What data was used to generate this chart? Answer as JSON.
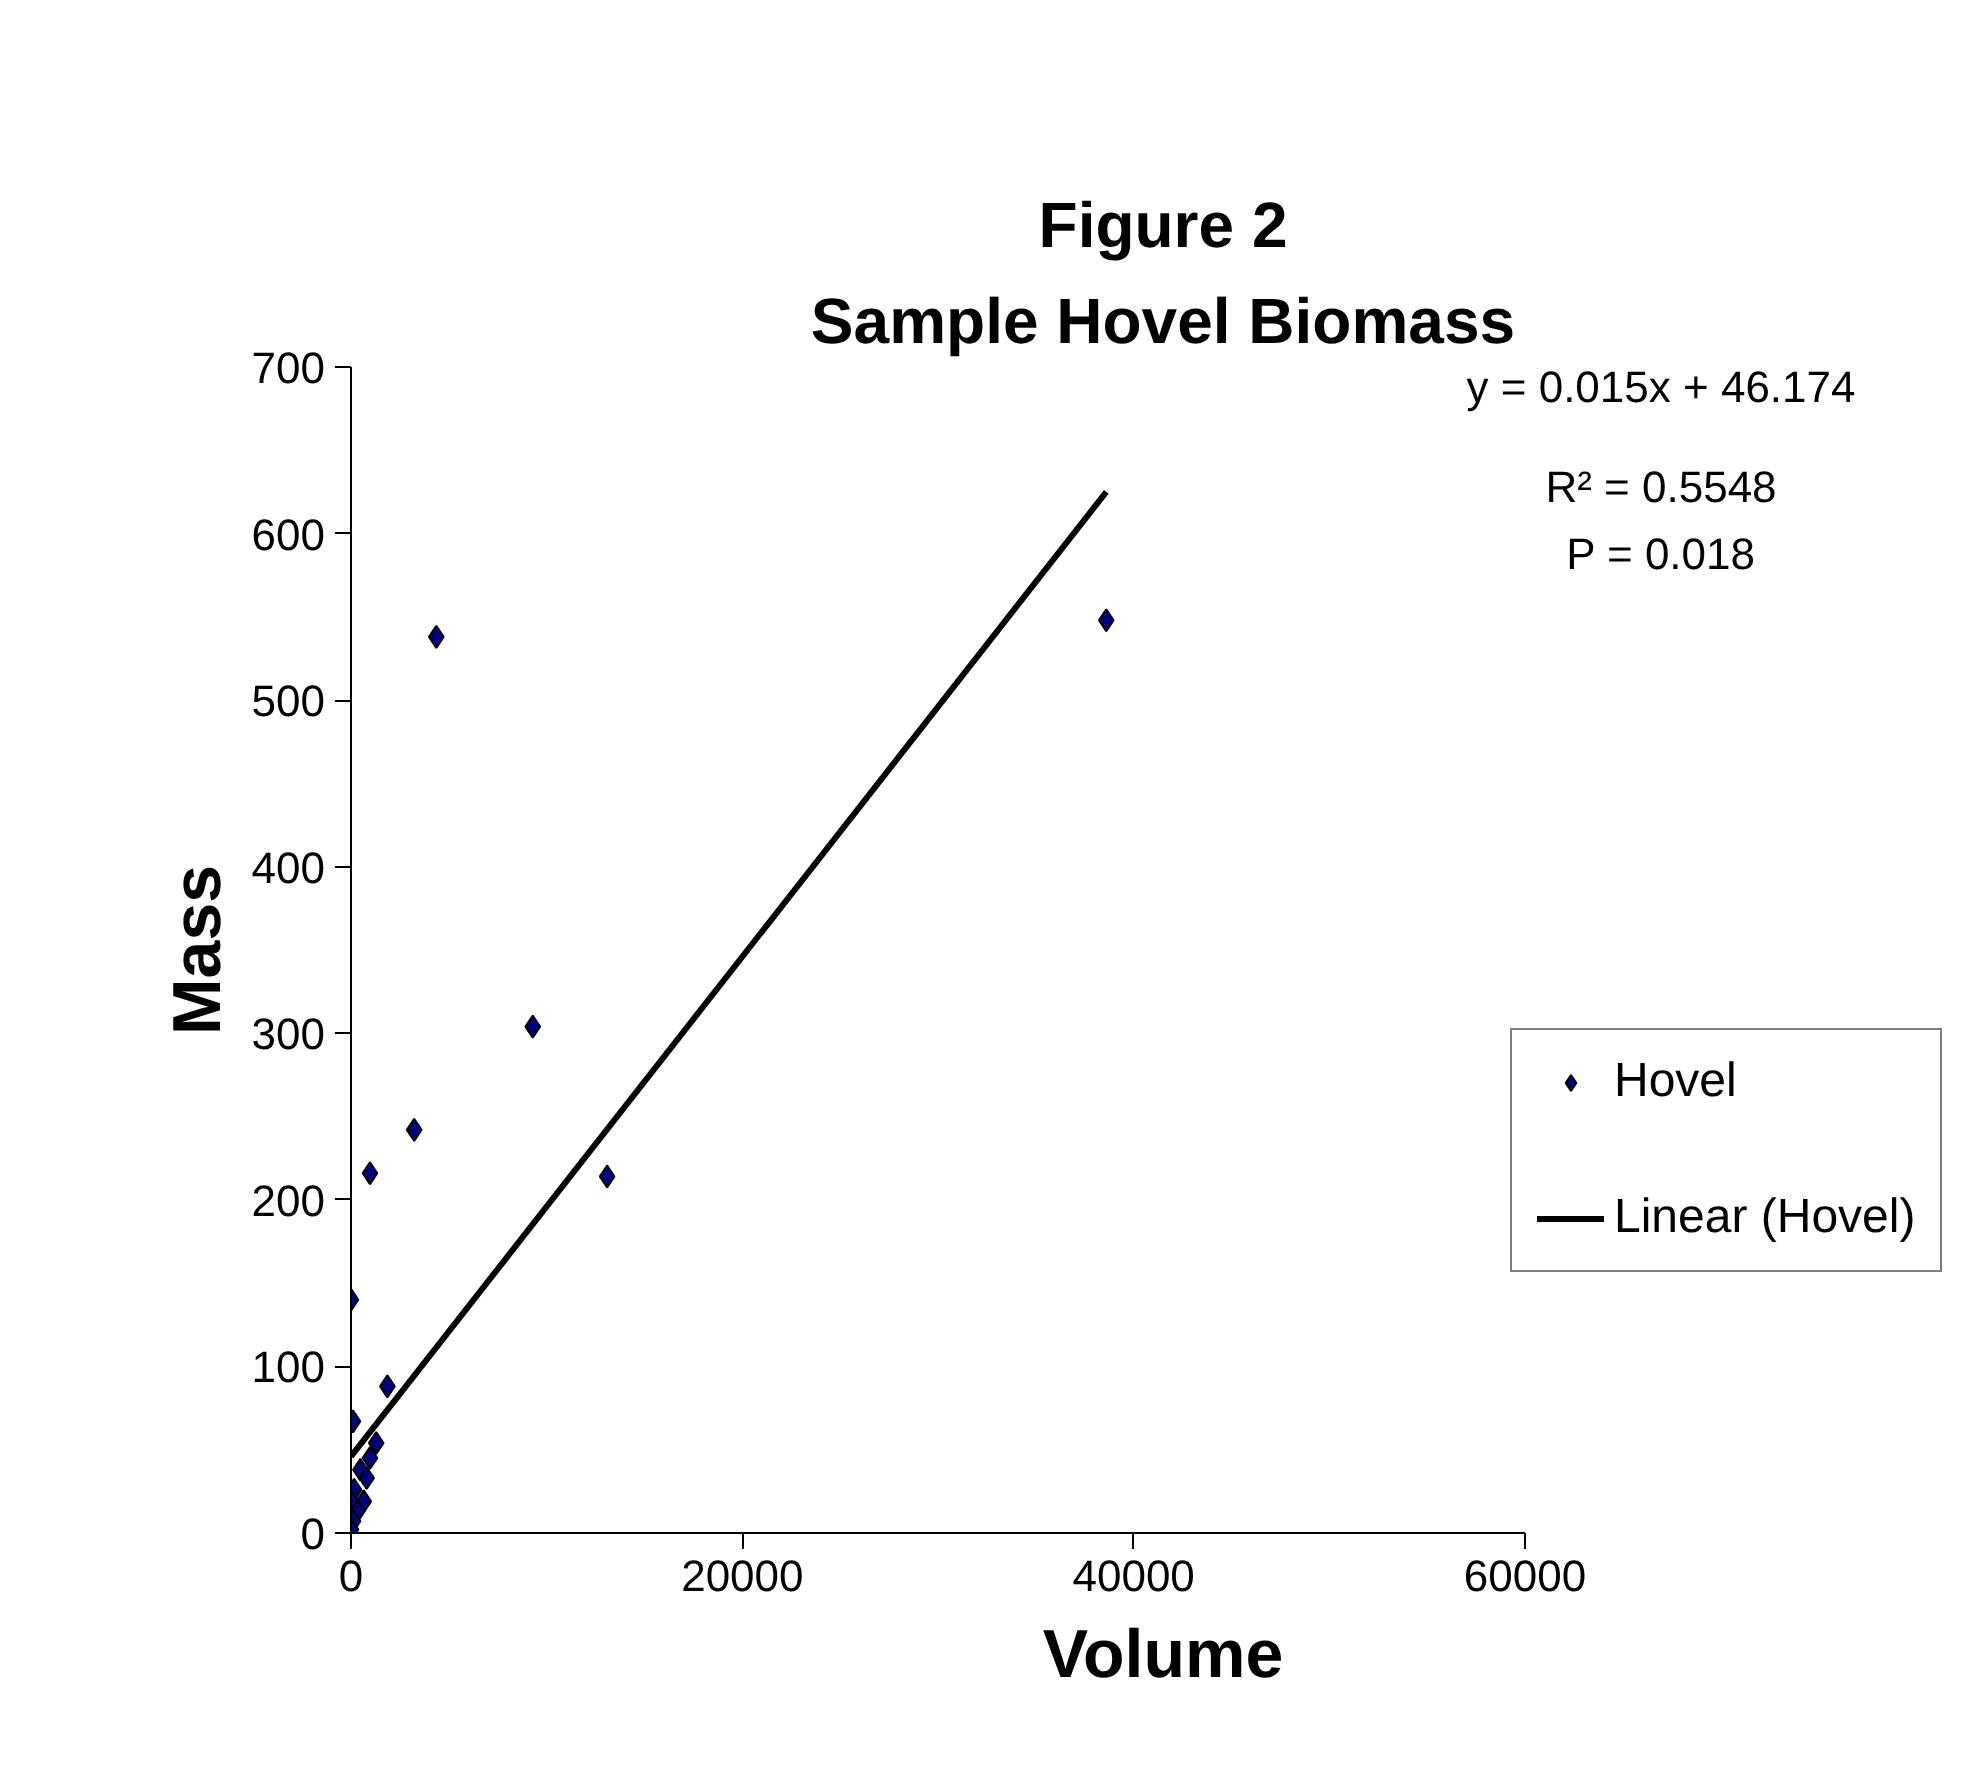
{
  "chart_data": {
    "type": "scatter",
    "title": "Figure 2",
    "subtitle": "Sample Hovel Biomass",
    "xlabel": "Volume",
    "ylabel": "Mass",
    "xlim": [
      0,
      60000
    ],
    "xticks": [
      0,
      20000,
      40000,
      60000
    ],
    "ylim": [
      0,
      700
    ],
    "yticks": [
      0,
      100,
      200,
      300,
      400,
      500,
      600,
      700
    ],
    "grid": false,
    "legend": "right",
    "annotations": [
      "y = 0.015x + 46.174",
      "R² = 0.5548",
      "P = 0.018"
    ],
    "series": [
      {
        "name": "Hovel",
        "marker": "diamond",
        "color": "#000080",
        "x": [
          4360,
          38600,
          9290,
          3230,
          970,
          13090,
          0,
          1860,
          100,
          1290,
          970,
          480,
          800,
          160,
          650,
          80,
          320,
          100,
          0
        ],
        "values": [
          538,
          548,
          304,
          242,
          216,
          214,
          140,
          88,
          67,
          54,
          45,
          38,
          33,
          26,
          19,
          18,
          13,
          7,
          2
        ]
      },
      {
        "name": "Linear (Hovel)",
        "type": "line",
        "color": "#000000",
        "line_style": "solid",
        "x": [
          0,
          38600
        ],
        "values": [
          46,
          625
        ]
      }
    ]
  }
}
